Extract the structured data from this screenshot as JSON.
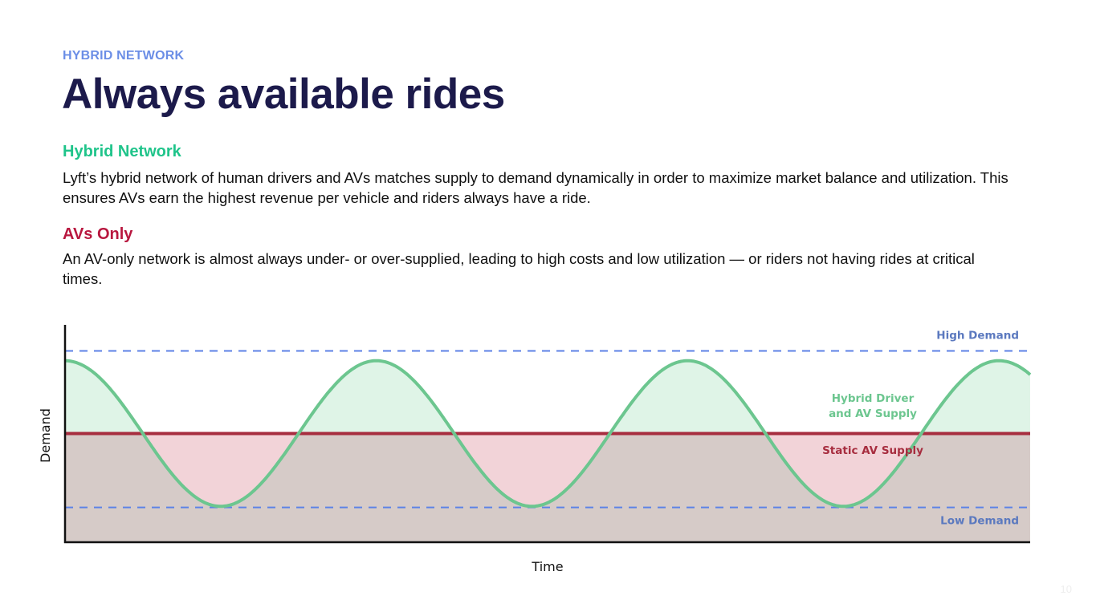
{
  "slide": {
    "eyebrow": "HYBRID NETWORK",
    "title": "Always available rides",
    "page_number": "10"
  },
  "sections": {
    "hybrid": {
      "heading": "Hybrid Network",
      "body": "Lyft’s hybrid network of human drivers and AVs matches supply to demand dynamically in order to maximize market balance and utilization. This ensures AVs earn the highest revenue per vehicle and riders always have a ride."
    },
    "av_only": {
      "heading": "AVs Only",
      "body": "An AV-only network is almost always under- or over-supplied, leading to high costs and low utilization — or riders not having rides at critical times."
    }
  },
  "colors": {
    "eyebrow": "#6b8ee6",
    "title": "#1c1a4b",
    "hybrid": "#1fc48a",
    "av_only": "#b8173f",
    "demand_curve": "#6cc68f",
    "demand_fill": "#dff4e7",
    "static_line": "#a72d3f",
    "static_fill": "#d6cbc8",
    "undersupply_fill": "#f2d3d8",
    "threshold_dash": "#5d82e6"
  },
  "chart_data": {
    "type": "line",
    "xlabel": "Time",
    "ylabel": "Demand",
    "ylim": [
      0,
      10
    ],
    "high_demand": {
      "label": "High Demand",
      "value": 8.8
    },
    "low_demand": {
      "label": "Low Demand",
      "value": 1.6
    },
    "static_supply": {
      "label": "Static AV Supply",
      "value": 5.0
    },
    "hybrid_supply": {
      "label_line1": "Hybrid Driver",
      "label_line2": "and AV Supply"
    },
    "demand_curve": {
      "shape": "sine",
      "mean": 5.0,
      "amplitude": 3.35,
      "cycles": 3.1,
      "phase_start": "peak"
    }
  }
}
